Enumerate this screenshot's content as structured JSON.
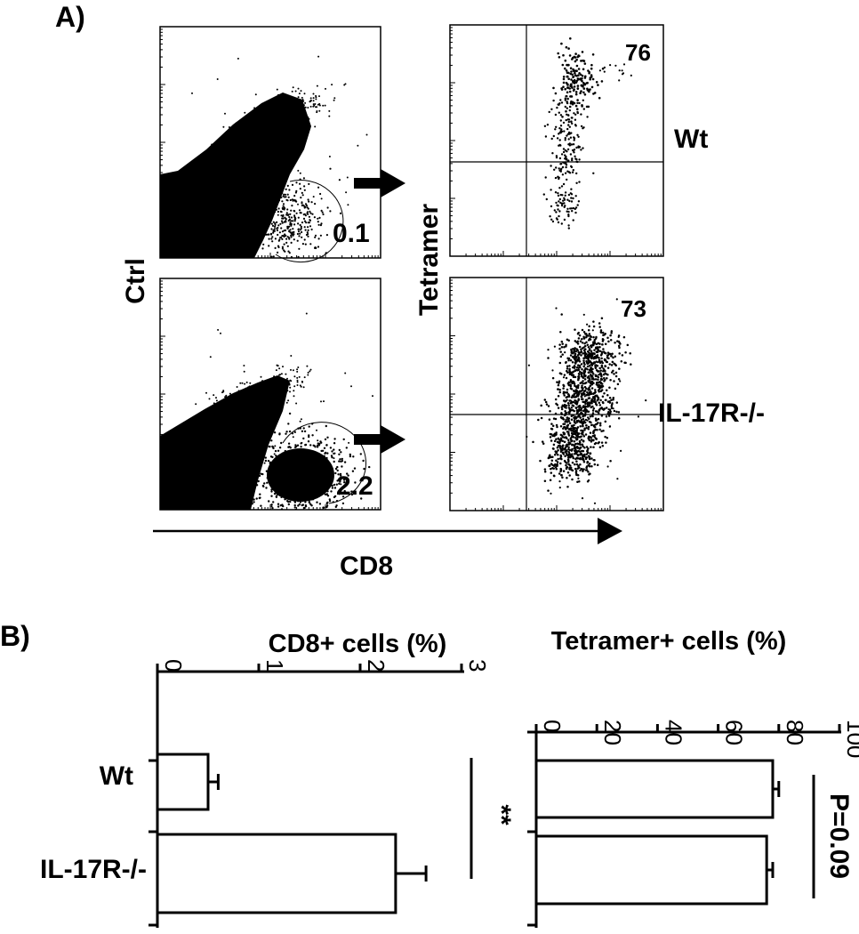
{
  "panel_a": {
    "label": "A)",
    "row_label": "Ctrl",
    "x_axis_label": "CD8",
    "y_axis_label": "Tetramer",
    "rows": [
      {
        "genotype": "Wt",
        "gate_percent": "0.1",
        "quadrant_percent": "76"
      },
      {
        "genotype": "IL-17R-/-",
        "gate_percent": "2.2",
        "quadrant_percent": "73"
      }
    ]
  },
  "panel_b": {
    "label": "B)"
  },
  "chart_data": [
    {
      "type": "bar",
      "orientation": "horizontal",
      "title": "CD8+ cells (%)",
      "categories": [
        "Wt",
        "IL-17R-/-"
      ],
      "values": [
        0.5,
        2.35
      ],
      "errors": [
        0.1,
        0.3
      ],
      "xlim": [
        0,
        3
      ],
      "ticks": [
        "0",
        "1",
        "2",
        "3"
      ],
      "significance": "**"
    },
    {
      "type": "bar",
      "orientation": "horizontal",
      "title": "Tetramer+ cells (%)",
      "categories": [
        "Wt",
        "IL-17R-/-"
      ],
      "values": [
        78,
        76
      ],
      "errors": [
        2,
        2
      ],
      "xlim": [
        0,
        100
      ],
      "ticks": [
        "0",
        "20",
        "40",
        "60",
        "80",
        "100"
      ],
      "significance": "P=0.09"
    }
  ]
}
